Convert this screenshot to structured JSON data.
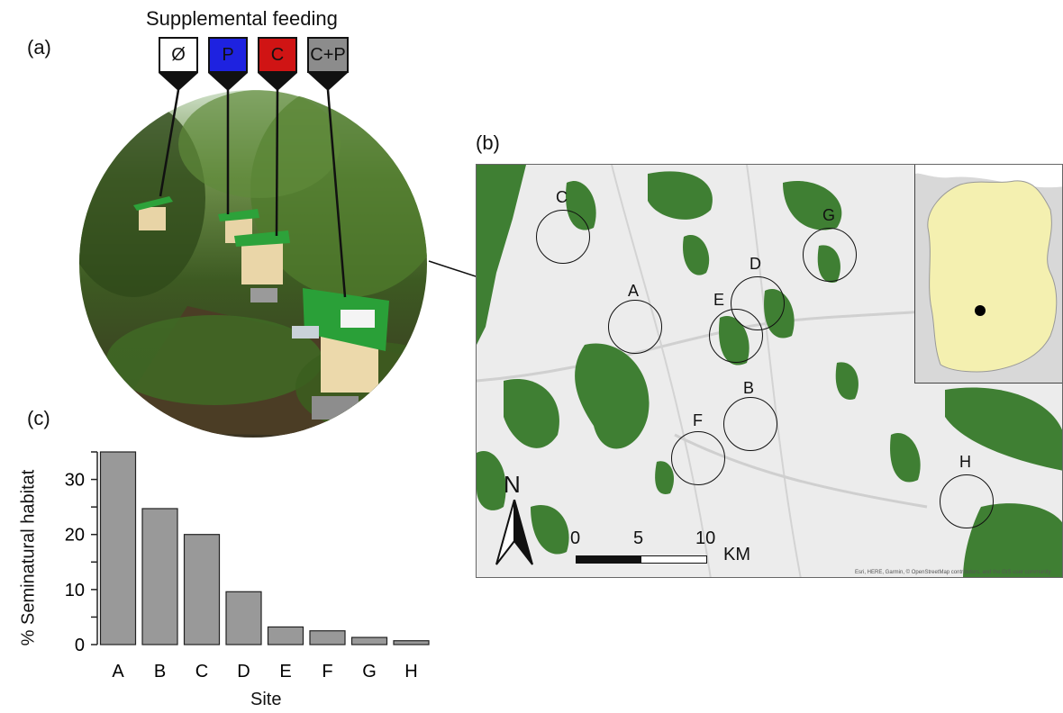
{
  "panel_a": {
    "letter": "(a)",
    "title": "Supplemental feeding",
    "treatments": [
      {
        "label": "Ø",
        "color": "#ffffff"
      },
      {
        "label": "P",
        "color": "#1e22e0"
      },
      {
        "label": "C",
        "color": "#d01414"
      },
      {
        "label": "C+P",
        "color": "#8c8c8c"
      }
    ]
  },
  "panel_b": {
    "letter": "(b)",
    "sites": [
      "A",
      "B",
      "C",
      "D",
      "E",
      "F",
      "G",
      "H"
    ],
    "north_label": "N",
    "scale": {
      "ticks": [
        "0",
        "5",
        "10"
      ],
      "unit": "KM"
    },
    "attribution": "Esri, HERE, Garmin, © OpenStreetMap contributors, and the GIS user community",
    "colors": {
      "forest": "#3f7f33",
      "land": "#ececec",
      "germany": "#f4f0b0"
    }
  },
  "panel_c": {
    "letter": "(c)",
    "chart_data": {
      "type": "bar",
      "categories": [
        "A",
        "B",
        "C",
        "D",
        "E",
        "F",
        "G",
        "H"
      ],
      "values": [
        35.0,
        24.7,
        20.0,
        9.6,
        3.2,
        2.5,
        1.3,
        0.7
      ],
      "xlabel": "Site",
      "ylabel": "% Seminatural habitat",
      "ylim": [
        0,
        35
      ],
      "yticks": [
        "0",
        "10",
        "20",
        "30"
      ],
      "bar_color": "#999999"
    }
  }
}
